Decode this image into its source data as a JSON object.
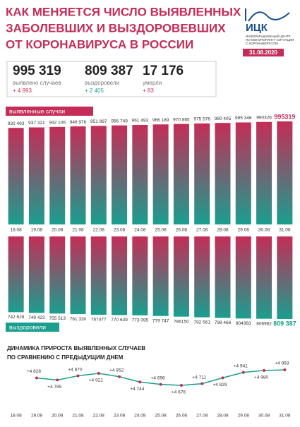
{
  "header": {
    "title": [
      "КАК МЕНЯЕТСЯ ЧИСЛО ВЫЯВЛЕННЫХ",
      "ЗАБОЛЕВШИХ И ВЫЗДОРОВЕВШИХ",
      "ОТ КОРОНАВИРУСА В РОССИИ"
    ],
    "logo": "ИЦК",
    "logo_caption": [
      "ИНФОРМАЦИОННЫЙ ЦЕНТР",
      "ПО МОНИТОРИНГУ СИТУАЦИИ",
      "С КОРОНАВИРУСОМ"
    ],
    "date": "31.08.2020"
  },
  "stats": [
    {
      "value": "995 319",
      "label": "выявлено случаев",
      "delta": "+ 4 993"
    },
    {
      "value": "809 387",
      "label": "выздоровели",
      "delta": "+ 2 405"
    },
    {
      "value": "17 176",
      "label": "умерли",
      "delta": "+ 83"
    }
  ],
  "chart_data": [
    {
      "type": "bar",
      "title": "выявленные случаи",
      "categories": [
        "18.08",
        "19.08",
        "20.08",
        "21.08",
        "22.08",
        "23.08",
        "24.08",
        "25.08",
        "26.08",
        "27.08",
        "28.08",
        "29.08",
        "30.08",
        "31.08"
      ],
      "values": [
        932493,
        937321,
        942106,
        946976,
        951897,
        956749,
        961493,
        966189,
        970865,
        975576,
        980405,
        985346,
        990326,
        995319
      ],
      "value_labels": [
        "932 493",
        "937 321",
        "942 106",
        "946 976",
        "951 897",
        "956 749",
        "961 493",
        "966 189",
        "970 865",
        "975 576",
        "980 405",
        "985 346",
        "990326",
        "995319"
      ],
      "color": [
        "#c42d57",
        "#1a9e8f"
      ]
    },
    {
      "type": "bar",
      "title": "выздоровели",
      "values": [
        742628,
        749423,
        755513,
        761330,
        767477,
        770639,
        773095,
        779747,
        786150,
        792561,
        798466,
        804383,
        806982,
        809387
      ],
      "value_labels": [
        "742 628",
        "749 423",
        "755 513",
        "761 330",
        "767477",
        "770 639",
        "773 095",
        "779 747",
        "786150",
        "792 561",
        "798 466",
        "804383",
        "806982",
        "809 387"
      ],
      "color": [
        "#c42d57",
        "#1a9e8f"
      ]
    },
    {
      "type": "line",
      "title": [
        "ДИНАМИКА ПРИРОСТА ВЫЯВЛЕННЫХ СЛУЧАЕВ",
        "ПО СРАВНЕНИЮ С ПРЕДЫДУЩИМ ДНЕМ"
      ],
      "categories": [
        "18.08",
        "19.08",
        "20.08",
        "21.08",
        "22.08",
        "23.08",
        "24.08",
        "25.08",
        "26.08",
        "27.08",
        "28.08",
        "29.08",
        "30.08",
        "31.08"
      ],
      "values": [
        null,
        4828,
        4785,
        4870,
        4921,
        4852,
        4744,
        4696,
        4676,
        4711,
        4829,
        4941,
        4980,
        4993
      ],
      "value_labels": [
        null,
        "+4 828",
        "+4 785",
        "+4 870",
        "+4 921",
        "+4 852",
        "+4 744",
        "+4 696",
        "+4 676",
        "+4 711",
        "+4 829",
        "+4 941",
        "+4 980",
        "+4 993"
      ],
      "color": "#1a9e8f",
      "marker_color": "#c42d57"
    }
  ]
}
